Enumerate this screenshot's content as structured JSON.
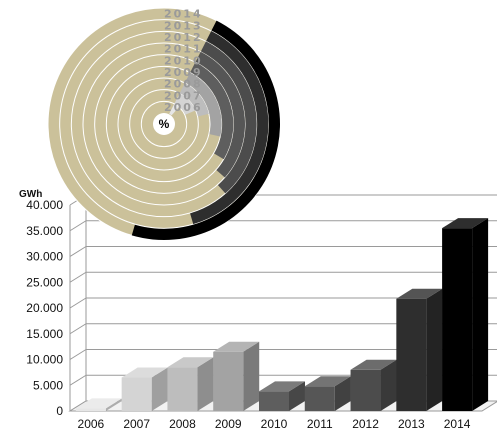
{
  "chart_data": [
    {
      "type": "bar",
      "categories": [
        "2006",
        "2007",
        "2008",
        "2009",
        "2010",
        "2011",
        "2012",
        "2013",
        "2014"
      ],
      "values": [
        500,
        6500,
        8500,
        11500,
        3800,
        4800,
        8000,
        21800,
        35500
      ],
      "ylabel": "GWh",
      "ylim": [
        0,
        40000
      ],
      "yticks": [
        "0",
        "5.000",
        "10.000",
        "15.000",
        "20.000",
        "25.000",
        "30.000",
        "35.000",
        "40.000"
      ],
      "grid": true,
      "colors": [
        "#e6e6e6",
        "#d4d4d4",
        "#bdbdbd",
        "#a3a3a3",
        "#5e5e5e",
        "#565656",
        "#4c4c4c",
        "#2e2e2e",
        "#000000"
      ]
    },
    {
      "type": "pie",
      "variant": "radial",
      "center_label": "%",
      "rings": [
        {
          "label": "2006",
          "percent": 4,
          "color": "#e6e6e6"
        },
        {
          "label": "2007",
          "percent": 11,
          "color": "#d4d4d4"
        },
        {
          "label": "2008",
          "percent": 14,
          "color": "#bdbdbd"
        },
        {
          "label": "2009",
          "percent": 21,
          "color": "#a3a3a3"
        },
        {
          "label": "2010",
          "percent": 26,
          "color": "#5e5e5e"
        },
        {
          "label": "2011",
          "percent": 29,
          "color": "#565656"
        },
        {
          "label": "2012",
          "percent": 31,
          "color": "#4c4c4c"
        },
        {
          "label": "2013",
          "percent": 38,
          "color": "#2e2e2e"
        },
        {
          "label": "2014",
          "percent": 47,
          "color": "#000000"
        }
      ],
      "remainder_color": "#cbc19a"
    }
  ]
}
